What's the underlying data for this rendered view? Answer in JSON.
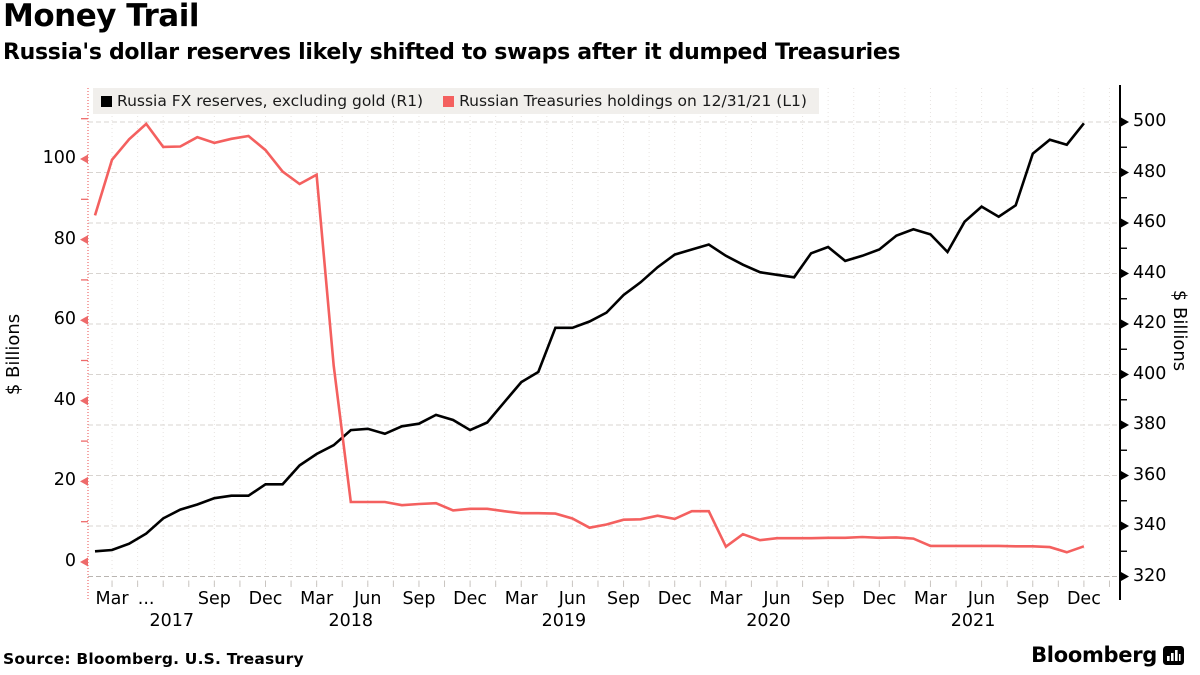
{
  "header": {
    "title": "Money Trail",
    "subtitle": "Russia's dollar reserves likely shifted to swaps after it dumped Treasuries"
  },
  "legend": [
    {
      "label": "Russia FX reserves, excluding gold (R1)",
      "color": "#000000"
    },
    {
      "label": "Russian Treasuries holdings on 12/31/21 (L1)",
      "color": "#f4605f"
    }
  ],
  "axes": {
    "left": {
      "title": "$ Billions",
      "ticks": [
        0,
        20,
        40,
        60,
        80,
        100
      ],
      "range": [
        0,
        100
      ],
      "color": "#ee6a6a"
    },
    "right": {
      "title": "$ Billions",
      "ticks": [
        320,
        340,
        360,
        380,
        400,
        420,
        440,
        460,
        480,
        500
      ],
      "range": [
        320,
        500
      ],
      "color": "#000000"
    },
    "x": {
      "months": [
        {
          "label": "Mar",
          "m": 1
        },
        {
          "label": "...",
          "m": 3
        },
        {
          "label": "Sep",
          "m": 7
        },
        {
          "label": "Dec",
          "m": 10
        },
        {
          "label": "Mar",
          "m": 13
        },
        {
          "label": "Jun",
          "m": 16
        },
        {
          "label": "Sep",
          "m": 19
        },
        {
          "label": "Dec",
          "m": 22
        },
        {
          "label": "Mar",
          "m": 25
        },
        {
          "label": "Jun",
          "m": 28
        },
        {
          "label": "Sep",
          "m": 31
        },
        {
          "label": "Dec",
          "m": 34
        },
        {
          "label": "Mar",
          "m": 37
        },
        {
          "label": "Jun",
          "m": 40
        },
        {
          "label": "Sep",
          "m": 43
        },
        {
          "label": "Dec",
          "m": 46
        },
        {
          "label": "Mar",
          "m": 49
        },
        {
          "label": "Jun",
          "m": 52
        },
        {
          "label": "Sep",
          "m": 55
        },
        {
          "label": "Dec",
          "m": 58
        }
      ],
      "years": [
        {
          "label": "2017",
          "m": 4.5
        },
        {
          "label": "2018",
          "m": 15
        },
        {
          "label": "2019",
          "m": 27.5
        },
        {
          "label": "2020",
          "m": 39.5
        },
        {
          "label": "2021",
          "m": 51.5
        }
      ]
    }
  },
  "chart_data": {
    "type": "line",
    "x_start": "2017-02",
    "x_end": "2021-12",
    "frequency": "monthly",
    "grid": "both",
    "legend_position": "top-left",
    "series": [
      {
        "name": "Russia FX reserves, excluding gold (R1)",
        "axis": "right",
        "color": "#000000",
        "values": [
          330,
          330.5,
          333,
          337,
          343,
          346.5,
          348.5,
          351,
          352,
          352,
          356.5,
          356.5,
          364,
          368.5,
          372,
          378,
          378.5,
          376.5,
          379.5,
          380.5,
          384,
          382,
          378,
          381,
          389,
          397,
          401,
          418.5,
          418.5,
          421,
          424.5,
          431.5,
          436.5,
          442.5,
          447.5,
          449.5,
          451.5,
          447,
          443.5,
          440.5,
          439.5,
          438.5,
          448,
          450.5,
          445,
          447,
          449.5,
          455,
          457.5,
          455.5,
          448.5,
          460.5,
          466.5,
          462.5,
          467,
          487.5,
          493,
          491,
          499.5
        ]
      },
      {
        "name": "Russian Treasuries holdings on 12/31/21 (L1)",
        "axis": "left",
        "color": "#f4605f",
        "values": [
          86,
          99.8,
          104.9,
          108.7,
          103,
          103.1,
          105.4,
          104,
          105,
          105.7,
          102.2,
          96.9,
          93.8,
          96.1,
          48.7,
          14.9,
          14.9,
          14.9,
          14.1,
          14.4,
          14.6,
          12.8,
          13.2,
          13.2,
          12.6,
          12.1,
          12.1,
          12,
          10.8,
          8.5,
          9.3,
          10.5,
          10.6,
          11.5,
          10.7,
          12.6,
          12.6,
          3.8,
          6.9,
          5.4,
          5.9,
          5.9,
          5.9,
          6,
          6,
          6.2,
          6,
          6.1,
          5.8,
          4,
          4,
          4,
          4,
          4,
          3.9,
          3.9,
          3.7,
          2.4,
          3.9
        ]
      }
    ]
  },
  "footer": {
    "source": "Source: Bloomberg. U.S. Treasury",
    "brand": "Bloomberg"
  }
}
